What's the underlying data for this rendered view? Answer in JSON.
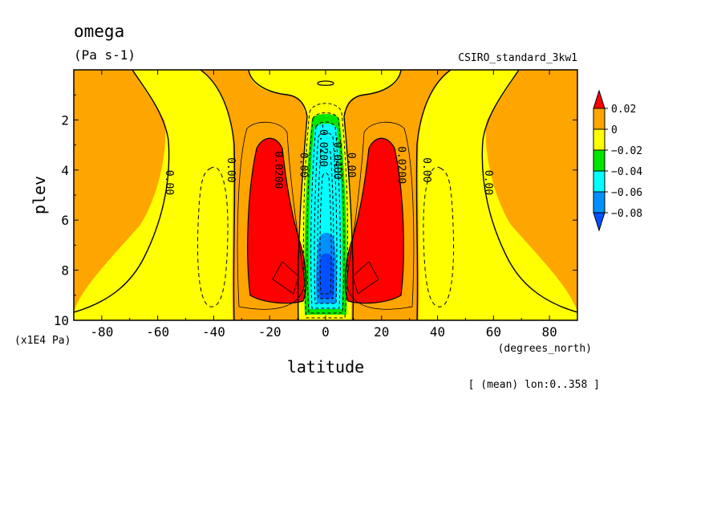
{
  "chart_data": {
    "type": "contour",
    "title": "omega",
    "units": "(Pa s-1)",
    "dataset": "CSIRO_standard_3kw1",
    "xlabel": "latitude",
    "x_units": "(degrees_north)",
    "ylabel": "plev",
    "y_units": "(x1E4 Pa)",
    "note": "[ (mean) lon:0..358 ]",
    "xlim": [
      -90,
      90
    ],
    "ylim": [
      10,
      0
    ],
    "x_ticks": [
      -80,
      -60,
      -40,
      -20,
      0,
      20,
      40,
      60,
      80
    ],
    "x_tick_labels": [
      "-80",
      "-60",
      "-40",
      "-20",
      "0",
      "20",
      "40",
      "60",
      "80"
    ],
    "y_ticks": [
      2,
      4,
      6,
      8,
      10
    ],
    "y_tick_labels": [
      "2",
      "4",
      "6",
      "8",
      "10"
    ],
    "colorbar": {
      "levels": [
        0.02,
        0,
        -0.02,
        -0.04,
        -0.06,
        -0.08
      ],
      "labels": [
        "0.02",
        "0",
        "−0.02",
        "−0.04",
        "−0.06",
        "−0.08"
      ],
      "colors": [
        "#ff0000",
        "#ffa500",
        "#ffff00",
        "#00e600",
        "#00ffff",
        "#0091ff",
        "#0050ff"
      ]
    },
    "contour_labels": [
      {
        "text": "0.00",
        "lat": -57,
        "p": 4.5
      },
      {
        "text": "0.00",
        "lat": -35,
        "p": 4.0
      },
      {
        "text": "0.0200",
        "lat": -18,
        "p": 4.0
      },
      {
        "text": "0.00",
        "lat": -9,
        "p": 3.8
      },
      {
        "text": "-0.0200",
        "lat": -2,
        "p": 3.0
      },
      {
        "text": "-0.0400",
        "lat": 3,
        "p": 3.5
      },
      {
        "text": "0.00",
        "lat": 8,
        "p": 3.8
      },
      {
        "text": "0.0200",
        "lat": 26,
        "p": 3.8
      },
      {
        "text": "0.00",
        "lat": 35,
        "p": 4.0
      },
      {
        "text": "0.00",
        "lat": 57,
        "p": 4.5
      }
    ]
  }
}
